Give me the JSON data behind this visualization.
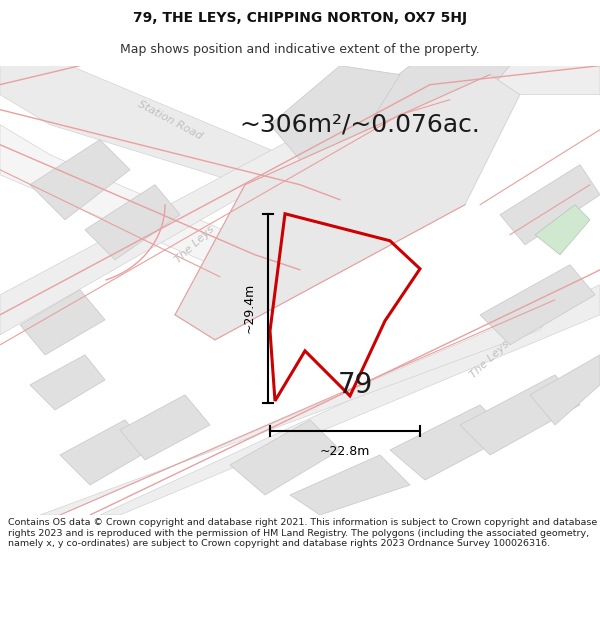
{
  "title_line1": "79, THE LEYS, CHIPPING NORTON, OX7 5HJ",
  "title_line2": "Map shows position and indicative extent of the property.",
  "area_text": "~306m²/~0.076ac.",
  "dim_width": "~22.8m",
  "dim_height": "~29.4m",
  "label_number": "79",
  "footer": "Contains OS data © Crown copyright and database right 2021. This information is subject to Crown copyright and database rights 2023 and is reproduced with the permission of HM Land Registry. The polygons (including the associated geometry, namely x, y co-ordinates) are subject to Crown copyright and database rights 2023 Ordnance Survey 100026316.",
  "bg_color": "#f5f5f5",
  "gray_block": "#e0e0e0",
  "gray_block_edge": "#cccccc",
  "pink_line": "#e8a0a0",
  "plot_color": "#cc0000",
  "dim_color": "#000000",
  "road_text_color": "#c0c0c0",
  "area_text_color": "#1a1a1a",
  "number_color": "#1a1a1a",
  "white": "#ffffff",
  "footer_color": "#222222",
  "title_color": "#111111",
  "subtitle_color": "#333333",
  "green_patch": "#d0e8d0"
}
